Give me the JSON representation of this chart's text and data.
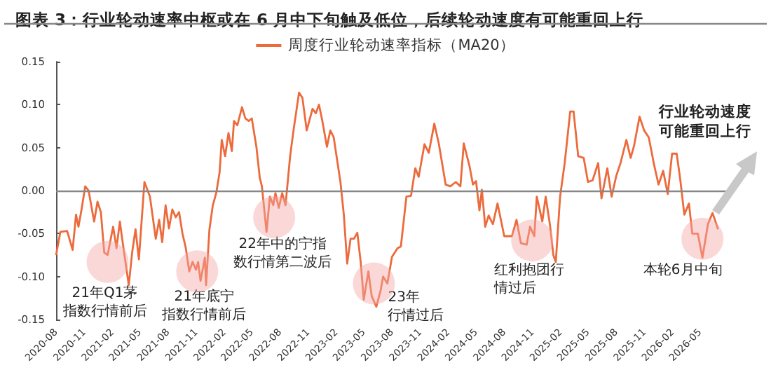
{
  "chart_data": {
    "type": "line",
    "title": "图表 3：行业轮动速率中枢或在 6 月中下旬触及低位，后续轮动速度有可能重回上行",
    "series": [
      {
        "name": "周度行业轮动速率指标（MA20）",
        "color": "#ec6a3c",
        "x": [
          "2020-08-01",
          "2020-08-15",
          "2020-09-06",
          "2020-09-24",
          "2020-10-05",
          "2020-10-13",
          "2020-10-24",
          "2020-11-04",
          "2020-11-15",
          "2020-12-03",
          "2020-12-14",
          "2020-12-25",
          "2021-01-05",
          "2021-01-16",
          "2021-02-03",
          "2021-02-14",
          "2021-02-25",
          "2021-03-04",
          "2021-03-26",
          "2021-04-06",
          "2021-04-17",
          "2021-04-28",
          "2021-05-16",
          "2021-06-03",
          "2021-06-22",
          "2021-07-03",
          "2021-07-13",
          "2021-07-24",
          "2021-08-04",
          "2021-08-15",
          "2021-08-26",
          "2021-09-06",
          "2021-09-17",
          "2021-09-28",
          "2021-10-09",
          "2021-10-20",
          "2021-10-31",
          "2021-11-07",
          "2021-11-15",
          "2021-11-29",
          "2021-12-03",
          "2021-12-14",
          "2021-12-25",
          "2022-01-05",
          "2022-01-16",
          "2022-01-23",
          "2022-02-03",
          "2022-02-14",
          "2022-02-25",
          "2022-03-04",
          "2022-03-15",
          "2022-03-30",
          "2022-04-10",
          "2022-04-21",
          "2022-05-01",
          "2022-05-16",
          "2022-05-27",
          "2022-06-03",
          "2022-06-18",
          "2022-06-29",
          "2022-07-10",
          "2022-07-17",
          "2022-07-28",
          "2022-08-08",
          "2022-08-19",
          "2022-09-03",
          "2022-09-14",
          "2022-10-02",
          "2022-10-13",
          "2022-10-27",
          "2022-11-15",
          "2022-11-26",
          "2022-12-06",
          "2022-12-17",
          "2023-01-01",
          "2023-01-12",
          "2023-01-23",
          "2023-02-14",
          "2023-02-25",
          "2023-03-08",
          "2023-03-19",
          "2023-03-30",
          "2023-04-10",
          "2023-04-21",
          "2023-05-01",
          "2023-05-16",
          "2023-05-27",
          "2023-06-11",
          "2023-06-25",
          "2023-07-03",
          "2023-07-17",
          "2023-08-01",
          "2023-08-19",
          "2023-08-30",
          "2023-09-17",
          "2023-10-02",
          "2023-10-16",
          "2023-10-27",
          "2023-11-15",
          "2023-11-29",
          "2023-12-17",
          "2024-01-01",
          "2024-01-23",
          "2024-02-07",
          "2024-02-25",
          "2024-03-11",
          "2024-03-22",
          "2024-04-10",
          "2024-04-21",
          "2024-05-01",
          "2024-05-12",
          "2024-05-20",
          "2024-05-31",
          "2024-06-11",
          "2024-06-25",
          "2024-07-10",
          "2024-08-01",
          "2024-08-26",
          "2024-09-10",
          "2024-09-24",
          "2024-10-13",
          "2024-10-24",
          "2024-11-07",
          "2024-11-15",
          "2024-12-03",
          "2024-12-14",
          "2024-12-28",
          "2025-01-08",
          "2025-01-16",
          "2025-01-30",
          "2025-02-14",
          "2025-03-04",
          "2025-03-15",
          "2025-03-30",
          "2025-04-17",
          "2025-05-01",
          "2025-05-16",
          "2025-06-03",
          "2025-06-14",
          "2025-07-03",
          "2025-07-17",
          "2025-08-01",
          "2025-08-15",
          "2025-09-03",
          "2025-09-17",
          "2025-09-28",
          "2025-10-16",
          "2025-10-31",
          "2025-11-15",
          "2025-12-03",
          "2025-12-17",
          "2026-01-01",
          "2026-01-16",
          "2026-01-30",
          "2026-02-14",
          "2026-02-25",
          "2026-03-11",
          "2026-03-26",
          "2026-04-06",
          "2026-04-24",
          "2026-05-09",
          "2026-05-27",
          "2026-06-11",
          "2026-06-29"
        ],
        "values": [
          -0.075,
          -0.048,
          -0.047,
          -0.069,
          -0.028,
          -0.042,
          -0.02,
          0.005,
          0.0,
          -0.036,
          -0.013,
          -0.025,
          -0.072,
          -0.075,
          -0.042,
          -0.067,
          -0.036,
          -0.055,
          -0.11,
          -0.072,
          -0.045,
          -0.08,
          0.01,
          -0.007,
          -0.056,
          -0.034,
          -0.06,
          -0.017,
          -0.044,
          -0.022,
          -0.031,
          -0.025,
          -0.05,
          -0.067,
          -0.094,
          -0.083,
          -0.092,
          -0.083,
          -0.105,
          -0.078,
          -0.11,
          -0.045,
          -0.017,
          -0.003,
          0.021,
          0.059,
          0.04,
          0.067,
          0.046,
          0.081,
          0.076,
          0.097,
          0.084,
          0.081,
          0.084,
          0.051,
          0.015,
          0.005,
          -0.048,
          -0.007,
          -0.017,
          -0.003,
          -0.02,
          -0.003,
          -0.017,
          0.04,
          0.07,
          0.114,
          0.108,
          0.07,
          0.095,
          0.09,
          0.1,
          0.081,
          0.051,
          0.07,
          0.062,
          0.01,
          -0.028,
          -0.085,
          -0.056,
          -0.056,
          -0.049,
          -0.083,
          -0.127,
          -0.094,
          -0.123,
          -0.135,
          -0.116,
          -0.1,
          -0.108,
          -0.077,
          -0.067,
          -0.065,
          -0.007,
          -0.006,
          0.026,
          0.016,
          0.054,
          0.044,
          0.078,
          0.054,
          0.007,
          0.005,
          0.01,
          0.005,
          0.055,
          0.028,
          0.007,
          0.011,
          -0.023,
          0.001,
          -0.042,
          -0.029,
          -0.039,
          -0.015,
          -0.053,
          -0.053,
          -0.034,
          -0.061,
          -0.063,
          -0.042,
          -0.053,
          -0.007,
          -0.036,
          -0.007,
          -0.04,
          -0.075,
          -0.083,
          -0.007,
          0.032,
          0.092,
          0.092,
          0.04,
          0.038,
          0.01,
          0.012,
          0.032,
          -0.009,
          0.026,
          -0.007,
          0.017,
          0.032,
          0.059,
          0.038,
          0.052,
          0.086,
          0.07,
          0.062,
          0.029,
          0.007,
          0.023,
          -0.004,
          0.043,
          0.043,
          0.015,
          -0.028,
          -0.015,
          -0.05,
          -0.05,
          -0.078,
          -0.039,
          -0.026,
          -0.045
        ]
      }
    ],
    "xlim": [
      "2020-08-01",
      "2026-08-08"
    ],
    "xticks": [
      "2020-08",
      "2020-11",
      "2021-02",
      "2021-05",
      "2021-08",
      "2021-11",
      "2022-02",
      "2022-05",
      "2022-08",
      "2022-11",
      "2023-02",
      "2023-05",
      "2023-08",
      "2023-11",
      "2024-02",
      "2024-05",
      "2024-08",
      "2024-11",
      "2025-02",
      "2025-05",
      "2025-08",
      "2025-11",
      "2026-02",
      "2026-05"
    ],
    "ylim": [
      -0.15,
      0.15
    ],
    "yticks": [
      {
        "value": -0.15,
        "label": "-0.15"
      },
      {
        "value": -0.1,
        "label": "-0.10"
      },
      {
        "value": -0.05,
        "label": "-0.05"
      },
      {
        "value": 0,
        "label": "0.00"
      },
      {
        "value": 0.05,
        "label": "0.05"
      },
      {
        "value": 0.1,
        "label": "0.10"
      },
      {
        "value": 0.15,
        "label": "0.15"
      }
    ],
    "ref_lines": [
      {
        "axis": "y",
        "value": 0,
        "color": "#888888"
      }
    ],
    "legend": "top",
    "grid": false,
    "marker": "none",
    "annotations": [
      {
        "text": "21年Q1茅指数行情前后",
        "x": "2021-01-16",
        "y": -0.083
      },
      {
        "text": "21年底宁指数行情前后",
        "x": "2021-11-04",
        "y": -0.094
      },
      {
        "text": "22年中的宁指数行情第二波后",
        "x": "2022-07-13",
        "y": -0.031
      },
      {
        "text": "23年行情过后",
        "x": "2023-06-03",
        "y": -0.108
      },
      {
        "text": "红利抱团行情过后",
        "x": "2024-10-31",
        "y": -0.058
      },
      {
        "text": "本轮6月中旬",
        "x": "2026-05-09",
        "y": -0.056
      },
      "行业轮动速度可能重回上行"
    ]
  }
}
